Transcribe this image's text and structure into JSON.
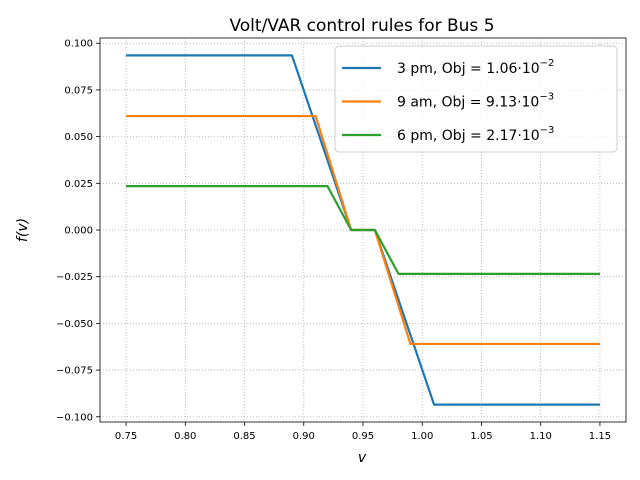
{
  "chart_data": {
    "type": "line",
    "title": "Volt/VAR control rules for Bus 5",
    "xlabel": "v",
    "ylabel": "f(v)",
    "xlim": [
      0.728,
      1.172
    ],
    "ylim": [
      -0.1028,
      0.1028
    ],
    "xticks": [
      "0.75",
      "0.80",
      "0.85",
      "0.90",
      "0.95",
      "1.00",
      "1.05",
      "1.10",
      "1.15"
    ],
    "xtick_values": [
      0.75,
      0.8,
      0.85,
      0.9,
      0.95,
      1.0,
      1.05,
      1.1,
      1.15
    ],
    "yticks": [
      "0.100",
      "0.075",
      "0.050",
      "0.025",
      "0.000",
      "−0.025",
      "−0.050",
      "−0.075",
      "−0.100"
    ],
    "ytick_values": [
      0.1,
      0.075,
      0.05,
      0.025,
      0.0,
      -0.025,
      -0.05,
      -0.075,
      -0.1
    ],
    "grid": true,
    "legend_position": "top-right",
    "series": [
      {
        "name": "3 pm, Obj = 1.06·10⁻²",
        "legend": {
          "prefix": "3 pm, Obj = 1.06",
          "base": "·10",
          "exp": "−2"
        },
        "color": "#1f77b4",
        "x": [
          0.75,
          0.89,
          0.94,
          0.96,
          1.01,
          1.15
        ],
        "y": [
          0.0935,
          0.0935,
          0.0,
          0.0,
          -0.0935,
          -0.0935
        ]
      },
      {
        "name": "9 am, Obj = 9.13·10⁻³",
        "legend": {
          "prefix": "9 am, Obj = 9.13",
          "base": "·10",
          "exp": "−3"
        },
        "color": "#ff7f0e",
        "x": [
          0.75,
          0.91,
          0.94,
          0.96,
          0.99,
          1.15
        ],
        "y": [
          0.061,
          0.061,
          0.0,
          0.0,
          -0.061,
          -0.061
        ]
      },
      {
        "name": "6 pm, Obj = 2.17·10⁻³",
        "legend": {
          "prefix": "6 pm, Obj = 2.17",
          "base": "·10",
          "exp": "−3"
        },
        "color": "#2ca02c",
        "x": [
          0.75,
          0.92,
          0.94,
          0.96,
          0.98,
          1.15
        ],
        "y": [
          0.0235,
          0.0235,
          0.0,
          0.0,
          -0.0235,
          -0.0235
        ]
      }
    ]
  }
}
